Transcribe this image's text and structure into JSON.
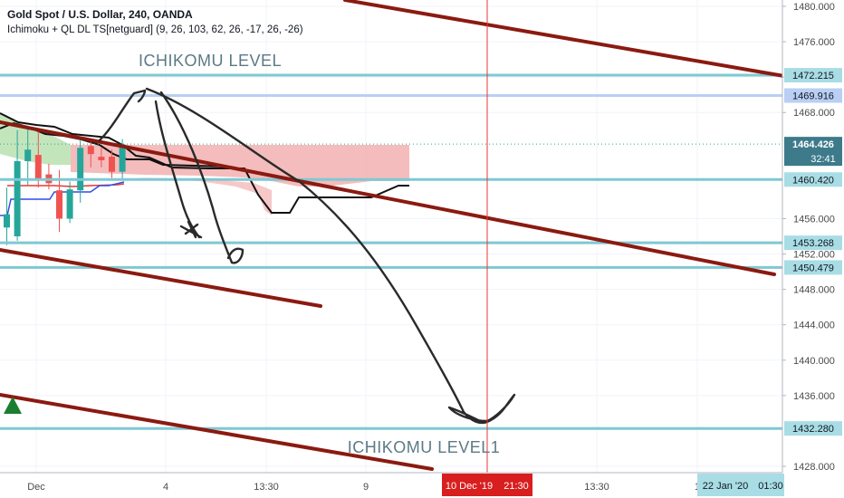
{
  "header": {
    "symbol_line": "Gold Spot / U.S. Dollar, 240, OANDA",
    "indicator_line": "Ichimoku + QL DL TS[netguard] (9, 26, 103, 62, 26, -17, 26, -26)"
  },
  "colors": {
    "background": "#ffffff",
    "grid": "#f0f3fa",
    "level_line": "#7fc8d3",
    "channel_line": "#8b1a10",
    "drawing": "#2a2a2a",
    "cloud": "#f2b0b0",
    "cloud_green": "#b9e0b0",
    "bull_candle": "#26a69a",
    "bear_candle": "#ef5350",
    "crosshair": "#e53935",
    "price_tag_dark": "#131722",
    "label_bg": "#3d7a8a"
  },
  "chart_data": {
    "type": "candlestick",
    "symbol": "Gold Spot / U.S. Dollar",
    "timeframe": "240",
    "source": "OANDA",
    "ylim": [
      1426.5,
      1481.5
    ],
    "y_ticks": [
      "1480.000",
      "1476.000",
      "1472.000",
      "1468.000",
      "1456.000",
      "1452.000",
      "1448.000",
      "1444.000",
      "1440.000",
      "1436.000",
      "1428.000"
    ],
    "x_ticks": [
      "Dec",
      "4",
      "13:30",
      "9",
      "13:30",
      "1"
    ],
    "horizontal_levels": [
      {
        "label": "1472.215",
        "price": 1472.215
      },
      {
        "label": "1469.916",
        "price": 1469.916
      },
      {
        "label": "1460.420",
        "price": 1460.42
      },
      {
        "label": "1453.268",
        "price": 1453.268
      },
      {
        "label": "1450.479",
        "price": 1450.479
      },
      {
        "label": "1432.280",
        "price": 1432.28
      }
    ],
    "current_price": {
      "label": "1464.426",
      "price": 1464.426,
      "countdown": "32:41"
    },
    "crosshair_time": {
      "date": "10 Dec '19",
      "time": "21:30"
    },
    "range_label": {
      "date": "22 Jan '20",
      "time": "01:30"
    },
    "annotations": [
      "ICHIKOMU LEVEL",
      "ICHIKOMU LEVEL1"
    ],
    "candles": [
      {
        "open": 1455.0,
        "high": 1459.5,
        "low": 1453.0,
        "close": 1456.5
      },
      {
        "open": 1454.0,
        "high": 1466.0,
        "low": 1453.5,
        "close": 1462.5
      },
      {
        "open": 1462.5,
        "high": 1466.5,
        "low": 1459.8,
        "close": 1463.8
      },
      {
        "open": 1463.2,
        "high": 1466.0,
        "low": 1459.5,
        "close": 1460.5
      },
      {
        "open": 1461.0,
        "high": 1462.2,
        "low": 1459.3,
        "close": 1460.0
      },
      {
        "open": 1459.2,
        "high": 1461.5,
        "low": 1454.5,
        "close": 1456.0
      },
      {
        "open": 1456.0,
        "high": 1460.2,
        "low": 1455.5,
        "close": 1459.3
      },
      {
        "open": 1459.2,
        "high": 1465.0,
        "low": 1457.8,
        "close": 1464.0
      },
      {
        "open": 1464.2,
        "high": 1465.0,
        "low": 1461.8,
        "close": 1463.3
      },
      {
        "open": 1463.0,
        "high": 1464.0,
        "low": 1461.8,
        "close": 1462.6
      },
      {
        "open": 1463.0,
        "high": 1463.8,
        "low": 1460.6,
        "close": 1461.3
      },
      {
        "open": 1461.3,
        "high": 1465.0,
        "low": 1460.5,
        "close": 1464.4
      }
    ]
  }
}
